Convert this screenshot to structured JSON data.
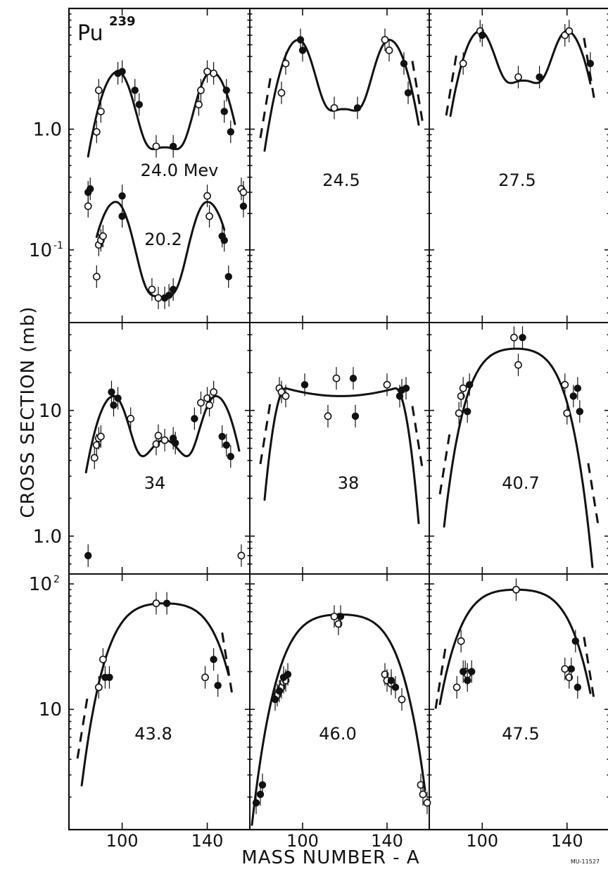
{
  "chart_data": {
    "type": "scatter",
    "element_label": "Pu",
    "element_mass": "239",
    "xlabel": "MASS NUMBER - A",
    "ylabel": "CROSS SECTION (mb)",
    "x_tick_labels": [
      "100",
      "140"
    ],
    "x_range": [
      75,
      160
    ],
    "y_scale": "log",
    "figure_code": "MU-11527",
    "row_ranges": [
      [
        0.025,
        10
      ],
      [
        0.5,
        50
      ],
      [
        1.1,
        120
      ]
    ],
    "row_y_ticks": [
      [
        {
          "value": 1.0,
          "label": "1.0"
        },
        {
          "value": 0.1,
          "label": "10",
          "sup": "-1"
        }
      ],
      [
        {
          "value": 10,
          "label": "10"
        },
        {
          "value": 1.0,
          "label": "1.0"
        }
      ],
      [
        {
          "value": 100,
          "label": "10",
          "sup": "2"
        },
        {
          "value": 10,
          "label": "10"
        }
      ]
    ],
    "panels": [
      {
        "row": 0,
        "col": 0,
        "label": "24.0 Mev",
        "peak": 3.0,
        "curve": {
          "type": "double",
          "low": 84,
          "high": 153,
          "peak1": 98,
          "peak2": 142,
          "valley": 0.7,
          "dash": false
        },
        "open": [
          [
            84,
            0.23
          ],
          [
            88,
            0.95
          ],
          [
            89,
            2.1
          ],
          [
            90,
            1.4
          ],
          [
            116,
            0.72
          ],
          [
            136,
            1.6
          ],
          [
            137,
            2.1
          ],
          [
            140,
            3.0
          ],
          [
            143,
            2.9
          ],
          [
            156,
            0.32
          ],
          [
            157,
            0.3
          ]
        ],
        "filled": [
          [
            84,
            0.3
          ],
          [
            85,
            0.32
          ],
          [
            98,
            2.9
          ],
          [
            100,
            3.0
          ],
          [
            106,
            2.1
          ],
          [
            108,
            1.6
          ],
          [
            124,
            0.72
          ],
          [
            148,
            1.4
          ],
          [
            149,
            2.1
          ],
          [
            151,
            0.95
          ],
          [
            157,
            0.23
          ]
        ]
      },
      {
        "row": 0,
        "col": 0,
        "label": "20.2",
        "peak": 0.25,
        "curve": {
          "type": "double",
          "low": 88,
          "high": 148,
          "peak1": 97,
          "peak2": 140,
          "valley": 0.04,
          "dash": false
        },
        "open": [
          [
            88,
            0.06
          ],
          [
            89,
            0.11
          ],
          [
            90,
            0.12
          ],
          [
            91,
            0.13
          ],
          [
            114,
            0.047
          ],
          [
            117,
            0.04
          ],
          [
            140,
            0.28
          ],
          [
            141,
            0.19
          ]
        ],
        "filled": [
          [
            100,
            0.28
          ],
          [
            100,
            0.19
          ],
          [
            120,
            0.04
          ],
          [
            122,
            0.042
          ],
          [
            124,
            0.047
          ],
          [
            147,
            0.13
          ],
          [
            148,
            0.12
          ],
          [
            150,
            0.06
          ]
        ]
      },
      {
        "row": 0,
        "col": 1,
        "label": "24.5",
        "peak": 5.5,
        "curve": {
          "type": "double",
          "low": 82,
          "high": 155,
          "peak1": 98,
          "peak2": 141,
          "valley": 1.45,
          "dash": true
        },
        "open": [
          [
            90,
            2.0
          ],
          [
            92,
            3.5
          ],
          [
            115,
            1.5
          ],
          [
            139,
            5.5
          ],
          [
            141,
            4.5
          ]
        ],
        "filled": [
          [
            99,
            5.5
          ],
          [
            100,
            4.5
          ],
          [
            126,
            1.5
          ],
          [
            148,
            3.5
          ],
          [
            150,
            2.0
          ]
        ]
      },
      {
        "row": 0,
        "col": 2,
        "label": "27.5",
        "peak": 6.5,
        "curve": {
          "type": "double",
          "low": 85,
          "high": 151,
          "peak1": 99,
          "peak2": 140,
          "valley": 2.5,
          "dash": true
        },
        "open": [
          [
            91,
            3.5
          ],
          [
            99,
            6.5
          ],
          [
            117,
            2.7
          ],
          [
            139,
            6.0
          ],
          [
            141,
            6.5
          ]
        ],
        "filled": [
          [
            100,
            6.0
          ],
          [
            127,
            2.7
          ],
          [
            151,
            3.5
          ]
        ]
      },
      {
        "row": 1,
        "col": 0,
        "label": "34",
        "peak": 13,
        "curve": {
          "type": "double",
          "low": 83,
          "high": 155,
          "peak1": 96,
          "peak2": 144,
          "valley": 5.8,
          "dash": false
        },
        "open": [
          [
            87,
            4.2
          ],
          [
            88,
            5.3
          ],
          [
            89,
            6.0
          ],
          [
            90,
            6.2
          ],
          [
            104,
            8.6
          ],
          [
            116,
            5.4
          ],
          [
            117,
            6.3
          ],
          [
            120,
            5.8
          ],
          [
            137,
            11.5
          ],
          [
            140,
            12.5
          ],
          [
            141,
            11.0
          ],
          [
            143,
            14.0
          ],
          [
            156,
            0.7
          ]
        ],
        "filled": [
          [
            84,
            0.7
          ],
          [
            95,
            14.0
          ],
          [
            96,
            11.0
          ],
          [
            98,
            12.5
          ],
          [
            124,
            6.0
          ],
          [
            125,
            5.5
          ],
          [
            134,
            8.6
          ],
          [
            147,
            6.2
          ],
          [
            149,
            5.3
          ],
          [
            151,
            4.3
          ]
        ]
      },
      {
        "row": 1,
        "col": 1,
        "label": "38",
        "peak": 16,
        "curve": {
          "type": "flat",
          "low": 82,
          "high": 155,
          "top": 15,
          "valley": 13,
          "dash": true
        },
        "open": [
          [
            89,
            15.0
          ],
          [
            90,
            14.0
          ],
          [
            92,
            13.0
          ],
          [
            112,
            9.0
          ],
          [
            116,
            18.0
          ],
          [
            140,
            16.0
          ]
        ],
        "filled": [
          [
            101,
            16.0
          ],
          [
            124,
            18.0
          ],
          [
            125,
            9.0
          ],
          [
            146,
            13.0
          ],
          [
            147,
            14.5
          ],
          [
            149,
            15.0
          ]
        ]
      },
      {
        "row": 1,
        "col": 2,
        "label": "40.7",
        "peak": 30,
        "curve": {
          "type": "cap",
          "low": 82,
          "high": 153,
          "x0": 116,
          "top": 31,
          "shape": 4,
          "dash": true
        },
        "open": [
          [
            89,
            9.5
          ],
          [
            90,
            13.0
          ],
          [
            91,
            15.0
          ],
          [
            115,
            38
          ],
          [
            117,
            23
          ],
          [
            139,
            16.0
          ],
          [
            140,
            9.5
          ]
        ],
        "filled": [
          [
            93,
            9.8
          ],
          [
            94,
            16.0
          ],
          [
            119,
            38
          ],
          [
            143,
            13.0
          ],
          [
            145,
            15.0
          ],
          [
            146,
            9.8
          ]
        ]
      },
      {
        "row": 2,
        "col": 0,
        "label": "43.8",
        "peak": 70,
        "curve": {
          "type": "cap",
          "low": 81,
          "high": 150,
          "x0": 120,
          "top": 70,
          "shape": 2.5,
          "dash": true
        },
        "open": [
          [
            89,
            15.0
          ],
          [
            91,
            25.0
          ],
          [
            116,
            70.0
          ],
          [
            139,
            18.0
          ]
        ],
        "filled": [
          [
            92,
            18.0
          ],
          [
            94,
            18.0
          ],
          [
            121,
            70.0
          ],
          [
            143,
            25.0
          ],
          [
            145,
            15.5
          ]
        ]
      },
      {
        "row": 2,
        "col": 1,
        "label": "46.0",
        "peak": 55,
        "curve": {
          "type": "cap",
          "low": 76,
          "high": 158,
          "x0": 118,
          "top": 57,
          "shape": 2.2,
          "dash": false
        },
        "open": [
          [
            88,
            13.0
          ],
          [
            90,
            15.0
          ],
          [
            91,
            16.5
          ],
          [
            92,
            17.0
          ],
          [
            115,
            55.0
          ],
          [
            117,
            48.0
          ],
          [
            139,
            19.0
          ],
          [
            140,
            17.0
          ],
          [
            142,
            16.0
          ],
          [
            147,
            12.0
          ],
          [
            156,
            2.5
          ],
          [
            157,
            2.1
          ],
          [
            159,
            1.8
          ]
        ],
        "filled": [
          [
            78,
            1.8
          ],
          [
            80,
            2.1
          ],
          [
            81,
            2.5
          ],
          [
            87,
            12.0
          ],
          [
            89,
            14.0
          ],
          [
            91,
            18.0
          ],
          [
            93,
            19.0
          ],
          [
            118,
            55.0
          ],
          [
            142,
            17.0
          ],
          [
            144,
            15.0
          ]
        ]
      },
      {
        "row": 2,
        "col": 2,
        "label": "47.5",
        "peak": 90,
        "curve": {
          "type": "cap",
          "low": 80,
          "high": 151,
          "x0": 116,
          "top": 90,
          "shape": 2.1,
          "dash": true
        },
        "open": [
          [
            88,
            15.0
          ],
          [
            90,
            35.0
          ],
          [
            92,
            20.0
          ],
          [
            93,
            19.0
          ],
          [
            116,
            90
          ],
          [
            139,
            21.0
          ],
          [
            141,
            18.0
          ]
        ],
        "filled": [
          [
            91,
            20.0
          ],
          [
            93,
            17.0
          ],
          [
            95,
            20.0
          ],
          [
            142,
            21.0
          ],
          [
            144,
            35.0
          ],
          [
            145,
            15.0
          ]
        ]
      }
    ]
  }
}
